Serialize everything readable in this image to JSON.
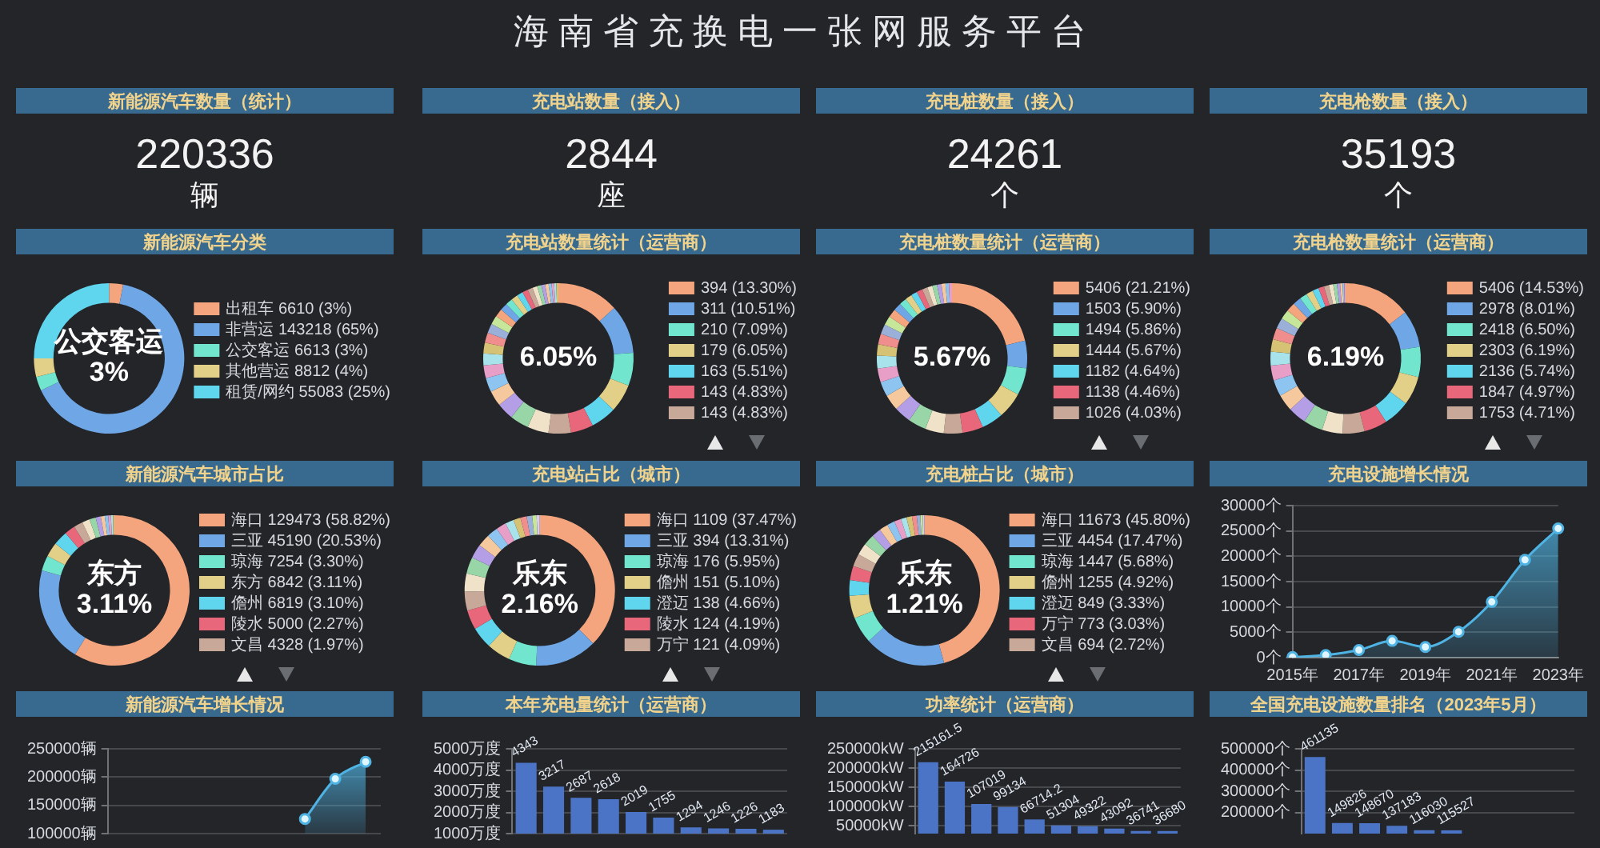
{
  "chart_data": [
    {
      "type": "other",
      "title": "海南省充换电一张网服务平台"
    },
    {
      "type": "other",
      "title": "新能源汽车数量（统计）",
      "annotations": [
        "220336",
        "辆"
      ]
    },
    {
      "type": "other",
      "title": "充电站数量（接入）",
      "annotations": [
        "2844",
        "座"
      ]
    },
    {
      "type": "other",
      "title": "充电桩数量（接入）",
      "annotations": [
        "24261",
        "个"
      ]
    },
    {
      "type": "other",
      "title": "充电枪数量（接入）",
      "annotations": [
        "35193",
        "个"
      ]
    },
    {
      "type": "donut",
      "title": "新能源汽车分类",
      "categories": [
        "出租车 6610 (3%)",
        "非营运 143218 (65%)",
        "公交客运 6613 (3%)",
        "其他营运 8812 (4%)",
        "租赁/网约 55083 (25%)"
      ],
      "values": [
        6610,
        143218,
        6613,
        8812,
        55083
      ],
      "colors": [
        "#f4a57e",
        "#6fa7e6",
        "#72e5cf",
        "#e2d088",
        "#60d5ee"
      ],
      "legend": "right",
      "annotations": [
        "公交客运",
        "3%"
      ]
    },
    {
      "type": "donut",
      "title": "充电站数量统计（运营商）",
      "categories": [
        "394 (13.30%)",
        "311 (10.51%)",
        "210 (7.09%)",
        "179 (6.05%)",
        "163 (5.51%)",
        "143 (4.83%)",
        "143 (4.83%)",
        null,
        null,
        null,
        null,
        null,
        null,
        null,
        null,
        null,
        null,
        null,
        null,
        null,
        null,
        null,
        null,
        null,
        null,
        null,
        null,
        null,
        null,
        null,
        null,
        null,
        null
      ],
      "values": [
        394,
        311,
        210,
        179,
        163,
        143,
        143,
        135,
        120,
        108,
        98,
        90,
        82,
        75,
        69,
        64,
        60,
        56,
        52,
        48,
        45,
        42,
        39,
        36,
        33,
        30,
        27,
        24,
        22,
        19,
        16,
        14,
        13
      ],
      "colors": [
        "#f4a57e",
        "#6fa7e6",
        "#72e5cf",
        "#e2d088",
        "#60d5ee",
        "#e9677b",
        "#c8a898",
        "#efe2c8",
        "#98d6a8",
        "#b49ee6",
        "#f6c89e",
        "#8ec5f0",
        "#e79fc7",
        "#a8e2ea",
        "#d6c274",
        "#f08e8e",
        "#9ab0d8",
        "#c6e69a",
        "#f4a57e",
        "#6fa7e6",
        "#72e5cf",
        "#e2d088",
        "#60d5ee",
        "#e9677b",
        "#c8a898",
        "#efe2c8",
        "#98d6a8",
        "#b49ee6",
        "#f6c89e",
        "#8ec5f0",
        "#e79fc7",
        "#a8e2ea",
        "#d6c274"
      ],
      "legend": "right",
      "annotations": [
        "6.05%"
      ]
    },
    {
      "type": "donut",
      "title": "充电桩数量统计（运营商）",
      "categories": [
        "5406 (21.21%)",
        "1503 (5.90%)",
        "1494 (5.86%)",
        "1444 (5.67%)",
        "1182 (4.64%)",
        "1138 (4.46%)",
        "1026 (4.03%)",
        null,
        null,
        null,
        null,
        null,
        null,
        null,
        null,
        null,
        null,
        null,
        null,
        null,
        null,
        null,
        null,
        null,
        null,
        null,
        null,
        null,
        null,
        null,
        null
      ],
      "values": [
        5406,
        1503,
        1494,
        1444,
        1182,
        1138,
        1026,
        1020,
        990,
        930,
        870,
        810,
        750,
        700,
        620,
        580,
        540,
        500,
        465,
        430,
        400,
        370,
        345,
        320,
        300,
        280,
        260,
        240,
        220,
        190,
        165
      ],
      "colors": [
        "#f4a57e",
        "#6fa7e6",
        "#72e5cf",
        "#e2d088",
        "#60d5ee",
        "#e9677b",
        "#c8a898",
        "#efe2c8",
        "#98d6a8",
        "#b49ee6",
        "#f6c89e",
        "#8ec5f0",
        "#e79fc7",
        "#a8e2ea",
        "#d6c274",
        "#f08e8e",
        "#9ab0d8",
        "#c6e69a",
        "#f4a57e",
        "#6fa7e6",
        "#72e5cf",
        "#e2d088",
        "#60d5ee",
        "#e9677b",
        "#c8a898",
        "#efe2c8",
        "#98d6a8",
        "#b49ee6",
        "#f6c89e",
        "#8ec5f0",
        "#e79fc7"
      ],
      "legend": "right",
      "annotations": [
        "5.67%"
      ]
    },
    {
      "type": "donut",
      "title": "充电枪数量统计（运营商）",
      "categories": [
        "5406 (14.53%)",
        "2978 (8.01%)",
        "2418 (6.50%)",
        "2303 (6.19%)",
        "2136 (5.74%)",
        "1847 (4.97%)",
        "1753 (4.71%)",
        null,
        null,
        null,
        null,
        null,
        null,
        null,
        null,
        null,
        null,
        null,
        null,
        null,
        null,
        null,
        null,
        null,
        null,
        null,
        null,
        null,
        null,
        null,
        null
      ],
      "values": [
        5406,
        2978,
        2418,
        2303,
        2136,
        1847,
        1753,
        1650,
        1550,
        1450,
        1350,
        1300,
        1200,
        1100,
        1000,
        920,
        850,
        780,
        720,
        660,
        600,
        550,
        500,
        450,
        400,
        350,
        300,
        250,
        200,
        135,
        100
      ],
      "colors": [
        "#f4a57e",
        "#6fa7e6",
        "#72e5cf",
        "#e2d088",
        "#60d5ee",
        "#e9677b",
        "#c8a898",
        "#efe2c8",
        "#98d6a8",
        "#b49ee6",
        "#f6c89e",
        "#8ec5f0",
        "#e79fc7",
        "#a8e2ea",
        "#d6c274",
        "#f08e8e",
        "#9ab0d8",
        "#c6e69a",
        "#f4a57e",
        "#6fa7e6",
        "#72e5cf",
        "#e2d088",
        "#60d5ee",
        "#e9677b",
        "#c8a898",
        "#efe2c8",
        "#98d6a8",
        "#b49ee6",
        "#f6c89e",
        "#8ec5f0",
        "#e79fc7"
      ],
      "legend": "right",
      "annotations": [
        "6.19%"
      ]
    },
    {
      "type": "donut",
      "title": "新能源汽车城市占比",
      "categories": [
        "海口 129473 (58.82%)",
        "三亚 45190 (20.53%)",
        "琼海 7254 (3.30%)",
        "东方 6842 (3.11%)",
        "儋州 6819 (3.10%)",
        "陵水 5000 (2.27%)",
        "文昌 4328 (1.97%)",
        null,
        null,
        null,
        null,
        null,
        null,
        null,
        null
      ],
      "values": [
        129473,
        45190,
        7254,
        6842,
        6819,
        5000,
        4328,
        3600,
        3000,
        2400,
        1900,
        1600,
        1300,
        1000,
        630
      ],
      "colors": [
        "#f4a57e",
        "#6fa7e6",
        "#72e5cf",
        "#e2d088",
        "#60d5ee",
        "#e9677b",
        "#c8a898",
        "#efe2c8",
        "#98d6a8",
        "#b49ee6",
        "#f6c89e",
        "#8ec5f0",
        "#e79fc7",
        "#a8e2ea",
        "#d6c274"
      ],
      "legend": "right",
      "annotations": [
        "东方",
        "3.11%"
      ]
    },
    {
      "type": "donut",
      "title": "充电站占比（城市）",
      "categories": [
        "海口 1109 (37.47%)",
        "三亚 394 (13.31%)",
        "琼海 176 (5.95%)",
        "儋州 151 (5.10%)",
        "澄迈 138 (4.66%)",
        "陵水 124 (4.19%)",
        "万宁 121 (4.09%)",
        null,
        null,
        null,
        null,
        null,
        null,
        null,
        null,
        null,
        null,
        null,
        null
      ],
      "values": [
        1109,
        394,
        176,
        151,
        138,
        124,
        121,
        115,
        105,
        90,
        80,
        70,
        64,
        55,
        45,
        40,
        35,
        28,
        20
      ],
      "colors": [
        "#f4a57e",
        "#6fa7e6",
        "#72e5cf",
        "#e2d088",
        "#60d5ee",
        "#e9677b",
        "#c8a898",
        "#efe2c8",
        "#98d6a8",
        "#b49ee6",
        "#f6c89e",
        "#8ec5f0",
        "#e79fc7",
        "#a8e2ea",
        "#d6c274",
        "#f08e8e",
        "#9ab0d8",
        "#c6e69a",
        "#d8cdef"
      ],
      "legend": "right",
      "annotations": [
        "乐东",
        "2.16%"
      ]
    },
    {
      "type": "donut",
      "title": "充电桩占比（城市）",
      "categories": [
        "海口 11673 (45.80%)",
        "三亚 4454 (17.47%)",
        "琼海 1447 (5.68%)",
        "儋州 1255 (4.92%)",
        "澄迈 849 (3.33%)",
        "万宁 773 (3.03%)",
        "文昌 694 (2.72%)",
        null,
        null,
        null,
        null,
        null,
        null,
        null,
        null,
        null,
        null,
        null,
        null
      ],
      "values": [
        11673,
        4454,
        1447,
        1255,
        849,
        773,
        694,
        650,
        600,
        520,
        480,
        420,
        380,
        308,
        300,
        260,
        200,
        130,
        94
      ],
      "colors": [
        "#f4a57e",
        "#6fa7e6",
        "#72e5cf",
        "#e2d088",
        "#60d5ee",
        "#e9677b",
        "#c8a898",
        "#efe2c8",
        "#98d6a8",
        "#b49ee6",
        "#f6c89e",
        "#8ec5f0",
        "#e79fc7",
        "#a8e2ea",
        "#d6c274",
        "#f08e8e",
        "#9ab0d8",
        "#c6e69a",
        "#d8cdef"
      ],
      "legend": "right",
      "annotations": [
        "乐东",
        "1.21%"
      ]
    },
    {
      "type": "area",
      "title": "充电设施增长情况",
      "categories": [
        "2015年",
        null,
        "2017年",
        null,
        "2019年",
        null,
        "2021年",
        null,
        "2023年"
      ],
      "values": [
        100,
        500,
        1500,
        3300,
        2100,
        5100,
        11000,
        19300,
        25500
      ],
      "color": "#4fb3e3",
      "ylim": [
        0,
        30000
      ],
      "yticks": [
        {
          "value": 0,
          "label": "0个"
        },
        {
          "value": 5000,
          "label": "5000个"
        },
        {
          "value": 10000,
          "label": "10000个"
        },
        {
          "value": 15000,
          "label": "15000个"
        },
        {
          "value": 20000,
          "label": "20000个"
        },
        {
          "value": 25000,
          "label": "25000个"
        },
        {
          "value": 30000,
          "label": "30000个"
        }
      ],
      "grid": "y",
      "marker": "circle"
    },
    {
      "type": "area",
      "title": "新能源汽车增长情况",
      "categories": [
        null,
        null,
        null,
        null,
        null,
        null,
        null,
        null,
        null
      ],
      "values": [
        null,
        null,
        null,
        null,
        null,
        null,
        126000,
        197000,
        227000
      ],
      "color": "#4fb3e3",
      "ylim": [
        100000,
        250000
      ],
      "yticks": [
        {
          "value": 100000,
          "label": "100000辆"
        },
        {
          "value": 150000,
          "label": "150000辆"
        },
        {
          "value": 200000,
          "label": "200000辆"
        },
        {
          "value": 250000,
          "label": "250000辆"
        }
      ],
      "grid": "y",
      "marker": "circle",
      "tick_labels": "y"
    },
    {
      "type": "bar",
      "title": "本年充电量统计（运营商）",
      "categories": [
        null,
        null,
        null,
        null,
        null,
        null,
        null,
        null,
        null,
        null
      ],
      "values": [
        4343,
        3217,
        2687,
        2618,
        2019,
        1755,
        1294,
        1246,
        1226,
        1183
      ],
      "color": "#4b74c6",
      "ylim": [
        1000,
        5000
      ],
      "yticks": [
        {
          "value": 1000,
          "label": "1000万度"
        },
        {
          "value": 2000,
          "label": "2000万度"
        },
        {
          "value": 3000,
          "label": "3000万度"
        },
        {
          "value": 4000,
          "label": "4000万度"
        },
        {
          "value": 5000,
          "label": "5000万度"
        }
      ],
      "grid": "y",
      "tick_labels": "y",
      "data_labels": true
    },
    {
      "type": "bar",
      "title": "功率统计（运营商）",
      "categories": [
        null,
        null,
        null,
        null,
        null,
        null,
        null,
        null,
        null,
        null
      ],
      "values": [
        215161.5,
        164726,
        107019,
        99134,
        66714.2,
        51304,
        49322,
        43092,
        36741,
        36680
      ],
      "color": "#4b74c6",
      "ylim": [
        30000,
        250000
      ],
      "yticks": [
        {
          "value": 50000,
          "label": "50000kW"
        },
        {
          "value": 100000,
          "label": "100000kW"
        },
        {
          "value": 150000,
          "label": "150000kW"
        },
        {
          "value": 200000,
          "label": "200000kW"
        },
        {
          "value": 250000,
          "label": "250000kW"
        }
      ],
      "grid": "y",
      "tick_labels": "y",
      "data_labels": true
    },
    {
      "type": "bar",
      "title": "全国充电设施数量排名（2023年5月）",
      "categories": [
        null,
        null,
        null,
        null,
        null,
        null,
        null,
        null,
        null,
        null
      ],
      "values": [
        461135,
        149826,
        148670,
        137183,
        116030,
        115527,
        null,
        null,
        null,
        null
      ],
      "color": "#4b74c6",
      "ylim": [
        100000,
        500000
      ],
      "yticks": [
        {
          "value": 200000,
          "label": "200000个"
        },
        {
          "value": 300000,
          "label": "300000个"
        },
        {
          "value": 400000,
          "label": "400000个"
        },
        {
          "value": 500000,
          "label": "500000个"
        }
      ],
      "grid": "y",
      "tick_labels": "y",
      "data_labels": true
    }
  ]
}
